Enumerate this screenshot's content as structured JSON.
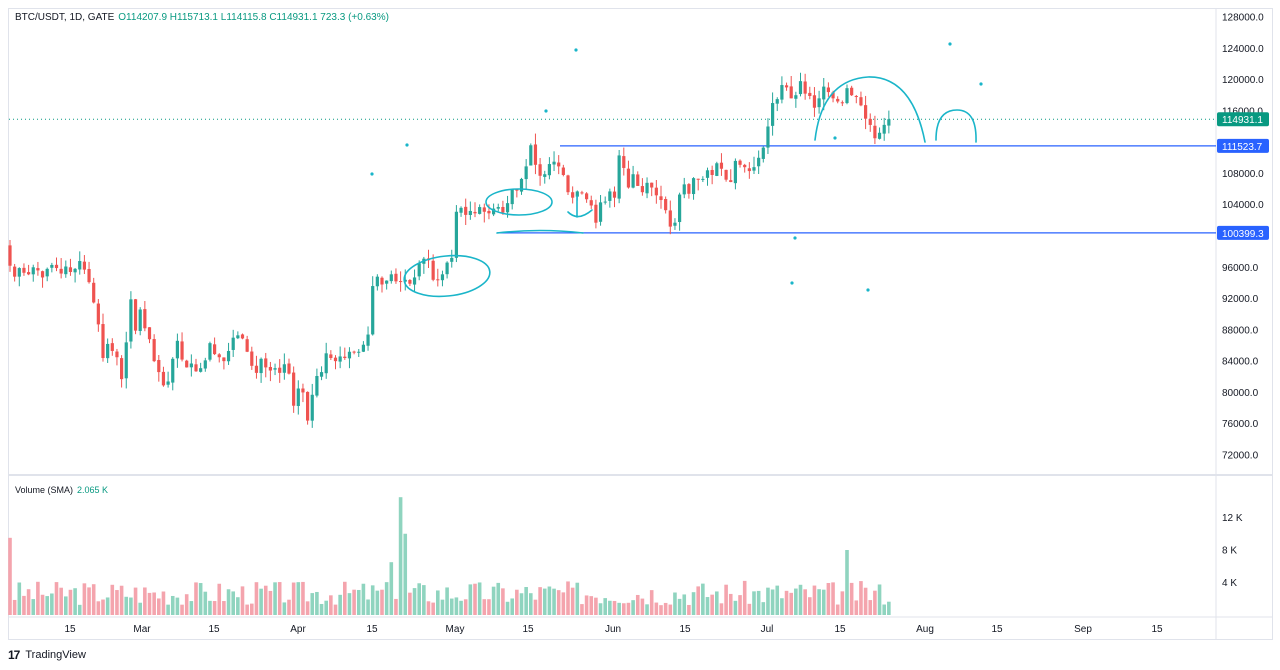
{
  "header": {
    "symbol": "BTC/USDT, 1D, GATE",
    "ohlc": "O114207.9 H115713.1 L114115.8 C114931.1 723.3 (+0.63%)"
  },
  "volume_header": {
    "label": "Volume (SMA)",
    "value": "2.065 K"
  },
  "footer": {
    "brand": "TradingView",
    "logo_icon": "tradingview-logo-icon"
  },
  "colors": {
    "up": "#26a69a",
    "down": "#ef5350",
    "vol_up": "#8fd4bf",
    "vol_down": "#f4a4ad",
    "level_line": "#2962ff",
    "drawing": "#1ab5c9",
    "last_price": "#089981"
  },
  "chart_data": [
    {
      "type": "candlestick",
      "title": "BTC/USDT, 1D, GATE",
      "x_axis": {
        "labels": [
          "15",
          "Mar",
          "15",
          "Apr",
          "15",
          "May",
          "15",
          "Jun",
          "15",
          "Jul",
          "15",
          "Aug",
          "15",
          "Sep",
          "15"
        ]
      },
      "y_axis": {
        "range": [
          70000,
          128000
        ],
        "tick_labels": [
          "128000.0",
          "124000.0",
          "120000.0",
          "116000.0",
          "108000.0",
          "104000.0",
          "96000.0",
          "92000.0",
          "88000.0",
          "84000.0",
          "80000.0",
          "76000.0",
          "72000.0"
        ]
      },
      "last_price": {
        "value": 114931.1,
        "label": "114931.1"
      },
      "levels": [
        {
          "value": 111523.7,
          "label": "111523.7"
        },
        {
          "value": 100399.3,
          "label": "100399.3"
        }
      ],
      "closes": [
        96200,
        94800,
        95900,
        95300,
        95100,
        96000,
        95600,
        94700,
        95800,
        96300,
        95900,
        95200,
        96100,
        95400,
        95800,
        96800,
        95700,
        94100,
        91500,
        88700,
        84400,
        86200,
        85300,
        84500,
        81700,
        86400,
        91900,
        87900,
        90600,
        88200,
        86800,
        84000,
        82600,
        80900,
        81400,
        84300,
        86600,
        84200,
        83200,
        83700,
        82700,
        83100,
        84100,
        86300,
        84900,
        84500,
        84000,
        85300,
        87000,
        87300,
        86900,
        85200,
        83400,
        82500,
        84300,
        83200,
        82800,
        83100,
        82500,
        83600,
        82400,
        78300,
        80500,
        80000,
        76400,
        79700,
        82100,
        82600,
        85000,
        84400,
        84000,
        84600,
        84400,
        85200,
        85100,
        85200,
        86100,
        87400,
        93600,
        94800,
        93800,
        94300,
        95100,
        94200,
        94200,
        94400,
        93900,
        94700,
        96500,
        97100,
        96900,
        94400,
        94400,
        95100,
        96600,
        97200,
        103100,
        103600,
        102700,
        103200,
        102900,
        103700,
        103100,
        102900,
        103500,
        103700,
        103000,
        104200,
        106000,
        105800,
        107300,
        108900,
        111600,
        109100,
        107700,
        107900,
        109200,
        109500,
        108900,
        107800,
        105600,
        104900,
        105700,
        105500,
        104700,
        103900,
        101700,
        104300,
        104400,
        105700,
        104900,
        110300,
        108700,
        106200,
        107900,
        106400,
        105600,
        106800,
        106200,
        105200,
        104600,
        103300,
        101200,
        101700,
        105300,
        106600,
        105400,
        107400,
        107200,
        107300,
        108400,
        107800,
        109300,
        108600,
        107200,
        106900,
        109600,
        109100,
        108800,
        108300,
        108800,
        110000,
        111300,
        114000,
        117000,
        117500,
        119300,
        119000,
        117600,
        118000,
        119800,
        118200,
        117900,
        116400,
        117600,
        119100,
        118400,
        117600,
        117200,
        117000,
        118900,
        118000,
        117800,
        116700,
        115000,
        114200,
        112500,
        113200,
        114207.9,
        114931.1
      ],
      "volume_series": {
        "name": "Volume (SMA)",
        "last": "2.065 K",
        "y_axis_labels": [
          "12 K",
          "8 K",
          "4 K"
        ],
        "range": [
          0,
          16000
        ]
      }
    }
  ]
}
